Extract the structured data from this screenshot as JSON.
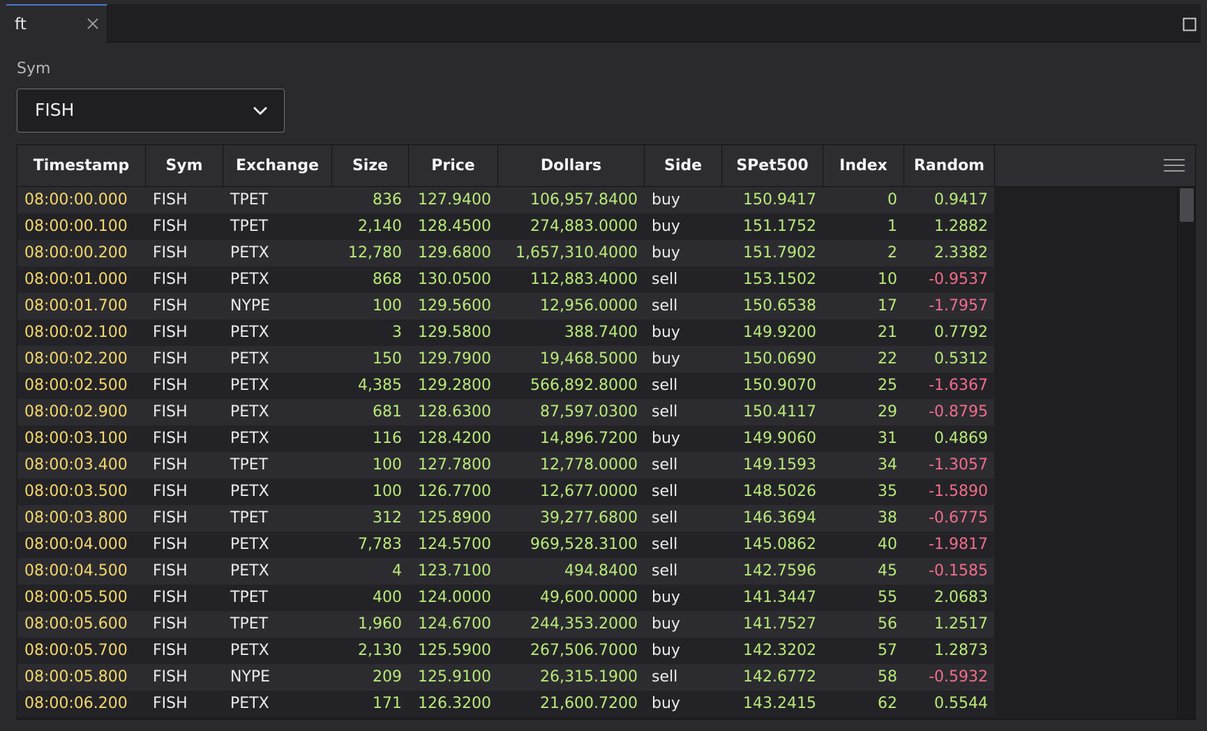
{
  "tab": {
    "title": "ft"
  },
  "sym_filter": {
    "label": "Sym",
    "value": "FISH"
  },
  "grid": {
    "columns": [
      "Timestamp",
      "Sym",
      "Exchange",
      "Size",
      "Price",
      "Dollars",
      "Side",
      "SPet500",
      "Index",
      "Random"
    ],
    "rows": [
      [
        "08:00:00.000",
        "FISH",
        "TPET",
        "836",
        "127.9400",
        "106,957.8400",
        "buy",
        "150.9417",
        "0",
        "0.9417"
      ],
      [
        "08:00:00.100",
        "FISH",
        "TPET",
        "2,140",
        "128.4500",
        "274,883.0000",
        "buy",
        "151.1752",
        "1",
        "1.2882"
      ],
      [
        "08:00:00.200",
        "FISH",
        "PETX",
        "12,780",
        "129.6800",
        "1,657,310.4000",
        "buy",
        "151.7902",
        "2",
        "2.3382"
      ],
      [
        "08:00:01.000",
        "FISH",
        "PETX",
        "868",
        "130.0500",
        "112,883.4000",
        "sell",
        "153.1502",
        "10",
        "-0.9537"
      ],
      [
        "08:00:01.700",
        "FISH",
        "NYPE",
        "100",
        "129.5600",
        "12,956.0000",
        "sell",
        "150.6538",
        "17",
        "-1.7957"
      ],
      [
        "08:00:02.100",
        "FISH",
        "PETX",
        "3",
        "129.5800",
        "388.7400",
        "buy",
        "149.9200",
        "21",
        "0.7792"
      ],
      [
        "08:00:02.200",
        "FISH",
        "PETX",
        "150",
        "129.7900",
        "19,468.5000",
        "buy",
        "150.0690",
        "22",
        "0.5312"
      ],
      [
        "08:00:02.500",
        "FISH",
        "PETX",
        "4,385",
        "129.2800",
        "566,892.8000",
        "sell",
        "150.9070",
        "25",
        "-1.6367"
      ],
      [
        "08:00:02.900",
        "FISH",
        "PETX",
        "681",
        "128.6300",
        "87,597.0300",
        "sell",
        "150.4117",
        "29",
        "-0.8795"
      ],
      [
        "08:00:03.100",
        "FISH",
        "PETX",
        "116",
        "128.4200",
        "14,896.7200",
        "buy",
        "149.9060",
        "31",
        "0.4869"
      ],
      [
        "08:00:03.400",
        "FISH",
        "TPET",
        "100",
        "127.7800",
        "12,778.0000",
        "sell",
        "149.1593",
        "34",
        "-1.3057"
      ],
      [
        "08:00:03.500",
        "FISH",
        "PETX",
        "100",
        "126.7700",
        "12,677.0000",
        "sell",
        "148.5026",
        "35",
        "-1.5890"
      ],
      [
        "08:00:03.800",
        "FISH",
        "TPET",
        "312",
        "125.8900",
        "39,277.6800",
        "sell",
        "146.3694",
        "38",
        "-0.6775"
      ],
      [
        "08:00:04.000",
        "FISH",
        "PETX",
        "7,783",
        "124.5700",
        "969,528.3100",
        "sell",
        "145.0862",
        "40",
        "-1.9817"
      ],
      [
        "08:00:04.500",
        "FISH",
        "PETX",
        "4",
        "123.7100",
        "494.8400",
        "sell",
        "142.7596",
        "45",
        "-0.1585"
      ],
      [
        "08:00:05.500",
        "FISH",
        "TPET",
        "400",
        "124.0000",
        "49,600.0000",
        "buy",
        "141.3447",
        "55",
        "2.0683"
      ],
      [
        "08:00:05.600",
        "FISH",
        "TPET",
        "1,960",
        "124.6700",
        "244,353.2000",
        "buy",
        "141.7527",
        "56",
        "1.2517"
      ],
      [
        "08:00:05.700",
        "FISH",
        "PETX",
        "2,130",
        "125.5900",
        "267,506.7000",
        "buy",
        "142.3202",
        "57",
        "1.2873"
      ],
      [
        "08:00:05.800",
        "FISH",
        "NYPE",
        "209",
        "125.9100",
        "26,315.1900",
        "sell",
        "142.6772",
        "58",
        "-0.5932"
      ],
      [
        "08:00:06.200",
        "FISH",
        "PETX",
        "171",
        "126.3200",
        "21,600.7200",
        "buy",
        "143.2415",
        "62",
        "0.5544"
      ]
    ]
  },
  "colors": {
    "timestamp": "#f5d76a",
    "positive_number": "#b9ea78",
    "negative_number": "#f26d8a",
    "text": "#ececee",
    "tab_accent": "#4a78d6"
  },
  "icons": {
    "tab_close": "close-icon",
    "window": "maximize-icon",
    "select": "chevron-down-icon",
    "grid_menu": "menu-icon"
  }
}
